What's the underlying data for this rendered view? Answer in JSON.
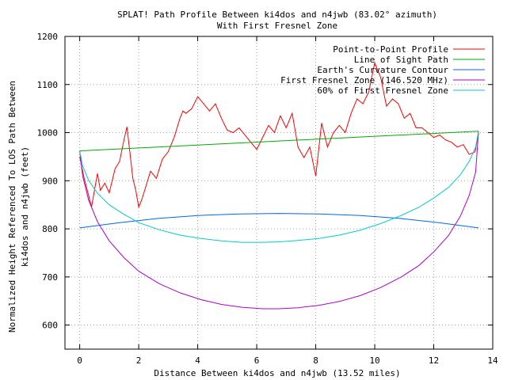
{
  "chart_data": {
    "type": "line",
    "title": "SPLAT! Path Profile Between ki4dos and n4jwb (83.02° azimuth)",
    "subtitle": "With First Fresnel Zone",
    "xlabel": "Distance Between ki4dos and n4jwb (13.52 miles)",
    "ylabel_line1": "Normalized Height Referenced To LOS Path Between",
    "ylabel_line2": "ki4dos and n4jwb (feet)",
    "xlim": [
      -0.5,
      14
    ],
    "ylim": [
      550,
      1200
    ],
    "xticks": [
      0,
      2,
      4,
      6,
      8,
      10,
      12,
      14
    ],
    "yticks": [
      600,
      700,
      800,
      900,
      1000,
      1100,
      1200
    ],
    "xtick_labels": [
      "0",
      "2",
      "4",
      "6",
      "8",
      "10",
      "12",
      "14"
    ],
    "ytick_labels": [
      "600",
      "700",
      "800",
      "900",
      "1000",
      "1100",
      "1200"
    ],
    "grid": true,
    "legend_position": "top-right",
    "series": [
      {
        "name": "Point-to-Point Profile",
        "color": "#ff0000",
        "x": [
          0,
          0.15,
          0.3,
          0.4,
          0.5,
          0.6,
          0.7,
          0.85,
          1.0,
          1.1,
          1.2,
          1.35,
          1.5,
          1.6,
          1.7,
          1.8,
          1.9,
          2.0,
          2.1,
          2.2,
          2.4,
          2.6,
          2.8,
          3.0,
          3.2,
          3.4,
          3.5,
          3.6,
          3.8,
          4.0,
          4.2,
          4.4,
          4.6,
          4.8,
          5.0,
          5.2,
          5.4,
          5.6,
          5.8,
          6.0,
          6.2,
          6.4,
          6.6,
          6.8,
          7.0,
          7.2,
          7.4,
          7.6,
          7.8,
          8.0,
          8.2,
          8.4,
          8.6,
          8.8,
          9.0,
          9.2,
          9.4,
          9.6,
          9.8,
          10.0,
          10.2,
          10.4,
          10.6,
          10.8,
          11.0,
          11.2,
          11.4,
          11.6,
          11.8,
          12.0,
          12.2,
          12.4,
          12.6,
          12.8,
          13.0,
          13.2,
          13.4,
          13.52
        ],
        "y": [
          950,
          905,
          870,
          845,
          880,
          915,
          880,
          895,
          875,
          900,
          925,
          940,
          985,
          1012,
          960,
          905,
          880,
          845,
          860,
          880,
          920,
          905,
          945,
          960,
          990,
          1030,
          1045,
          1040,
          1050,
          1075,
          1060,
          1045,
          1060,
          1030,
          1005,
          1000,
          1010,
          995,
          980,
          965,
          990,
          1015,
          1000,
          1035,
          1010,
          1040,
          970,
          948,
          970,
          910,
          1020,
          970,
          1000,
          1015,
          1000,
          1040,
          1070,
          1060,
          1085,
          1145,
          1115,
          1055,
          1070,
          1060,
          1030,
          1040,
          1010,
          1010,
          1000,
          990,
          995,
          985,
          980,
          970,
          975,
          955,
          960,
          1000
        ]
      },
      {
        "name": "Line of Sight Path",
        "color": "#00aa00",
        "x": [
          0,
          13.52
        ],
        "y": [
          962,
          1003
        ]
      },
      {
        "name": "Earth's Curvature Contour",
        "color": "#0066ee",
        "x": [
          0,
          1.352,
          2.704,
          4.056,
          5.408,
          6.76,
          8.112,
          9.464,
          10.816,
          12.168,
          13.52
        ],
        "y": [
          802,
          813,
          822,
          828,
          831,
          832,
          831,
          828,
          822,
          813,
          802
        ]
      },
      {
        "name": "First Fresnel Zone (146.520 MHz)",
        "color": "#b000d0",
        "x": [
          0,
          0.1,
          0.3,
          0.6,
          1.0,
          1.5,
          2.0,
          2.7,
          3.4,
          4.1,
          4.8,
          5.5,
          6.2,
          6.76,
          7.4,
          8.1,
          8.8,
          9.5,
          10.2,
          10.9,
          11.5,
          12.0,
          12.5,
          12.9,
          13.2,
          13.42,
          13.52
        ],
        "y": [
          962,
          910,
          860,
          815,
          775,
          740,
          712,
          686,
          667,
          653,
          643,
          637,
          634,
          634,
          636,
          641,
          649,
          661,
          678,
          700,
          724,
          752,
          786,
          826,
          869,
          918,
          1003
        ]
      },
      {
        "name": "60% of First Fresnel Zone",
        "color": "#00cccc",
        "x": [
          0,
          0.1,
          0.3,
          0.6,
          1.0,
          1.5,
          2.0,
          2.7,
          3.4,
          4.1,
          4.8,
          5.5,
          6.2,
          6.76,
          7.4,
          8.1,
          8.8,
          9.5,
          10.2,
          10.9,
          11.5,
          12.0,
          12.5,
          12.9,
          13.2,
          13.42,
          13.52
        ],
        "y": [
          962,
          931,
          901,
          874,
          850,
          830,
          813,
          798,
          787,
          780,
          775,
          772,
          772,
          773,
          776,
          780,
          787,
          797,
          811,
          828,
          845,
          864,
          886,
          912,
          940,
          970,
          1003
        ]
      }
    ]
  }
}
